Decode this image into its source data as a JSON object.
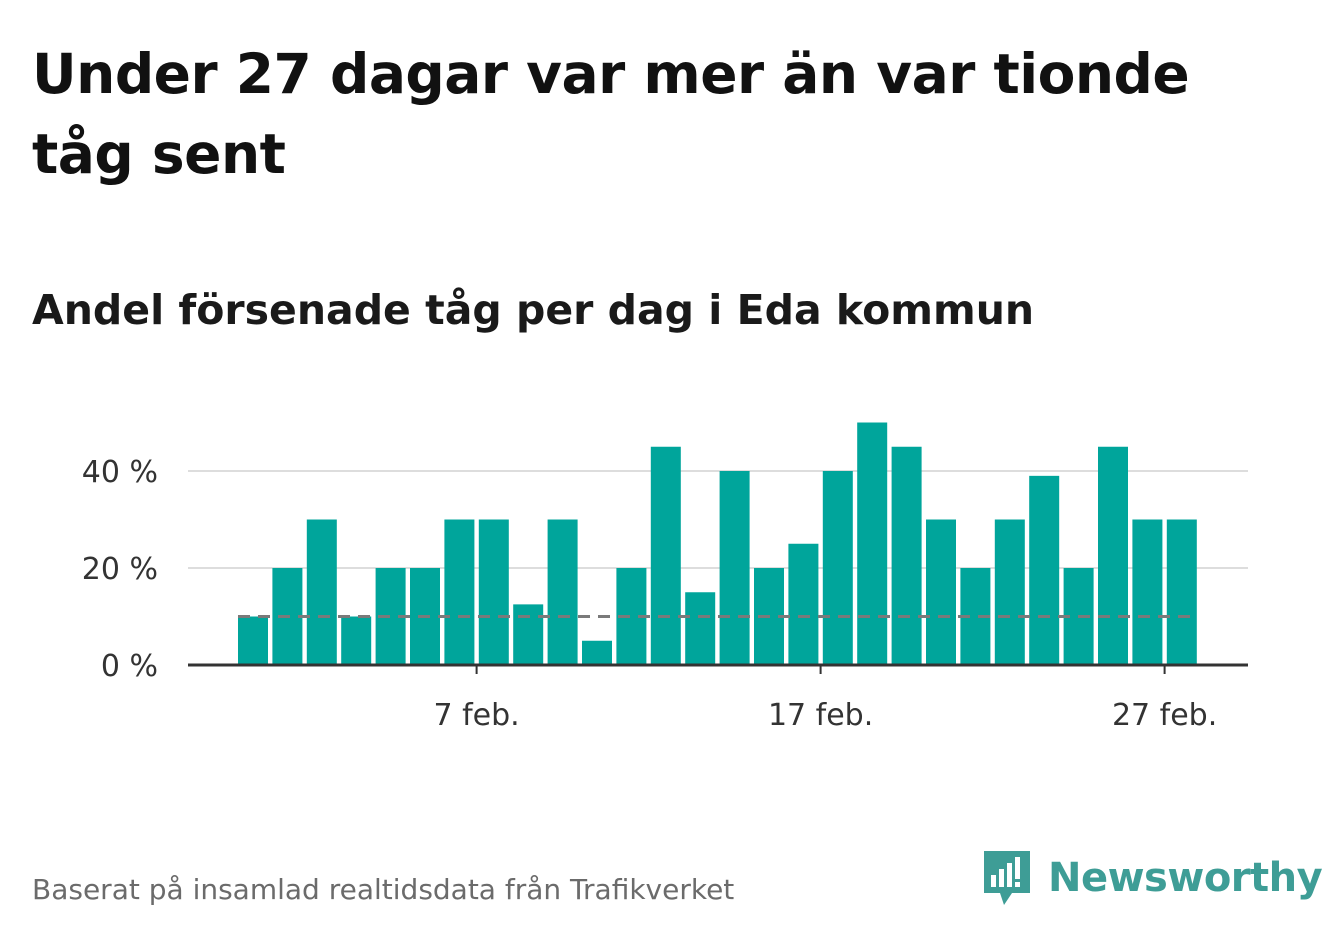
{
  "title": "Under 27 dagar var mer än var tionde tåg sent",
  "subtitle": "Andel försenade tåg per dag i Eda kommun",
  "footer": "Baserat på insamlad realtidsdata från Trafikverket",
  "brand": {
    "name": "Newsworthy",
    "icon": "newsworthy-logo-icon",
    "color": "#3e9d96"
  },
  "colors": {
    "bar": "#00a59b",
    "reference_line": "#7a7a7a",
    "grid": "#dddddd",
    "axis": "#333333"
  },
  "chart_data": {
    "type": "bar",
    "categories": [
      "1 feb.",
      "2 feb.",
      "3 feb.",
      "4 feb.",
      "5 feb.",
      "6 feb.",
      "7 feb.",
      "8 feb.",
      "9 feb.",
      "10 feb.",
      "11 feb.",
      "12 feb.",
      "13 feb.",
      "14 feb.",
      "15 feb.",
      "16 feb.",
      "17 feb.",
      "18 feb.",
      "19 feb.",
      "20 feb.",
      "21 feb.",
      "22 feb.",
      "23 feb.",
      "24 feb.",
      "25 feb.",
      "26 feb.",
      "27 feb.",
      "28 feb."
    ],
    "values": [
      10,
      20,
      30,
      10,
      20,
      20,
      30,
      30,
      12.5,
      30,
      5,
      20,
      45,
      15,
      40,
      20,
      25,
      40,
      50,
      45,
      30,
      20,
      30,
      39,
      20,
      45,
      30,
      30
    ],
    "reference_line": {
      "value": 10,
      "style": "dashed"
    },
    "ylim": [
      0,
      52
    ],
    "yticks": [
      0,
      20,
      40
    ],
    "ytick_labels": [
      "0 %",
      "20 %",
      "40 %"
    ],
    "xtick_labels": [
      {
        "category": "7 feb.",
        "label": "7 feb."
      },
      {
        "category": "17 feb.",
        "label": "17 feb."
      },
      {
        "category": "27 feb.",
        "label": "27 feb."
      }
    ],
    "grid": true,
    "xlabel": "",
    "ylabel": ""
  }
}
